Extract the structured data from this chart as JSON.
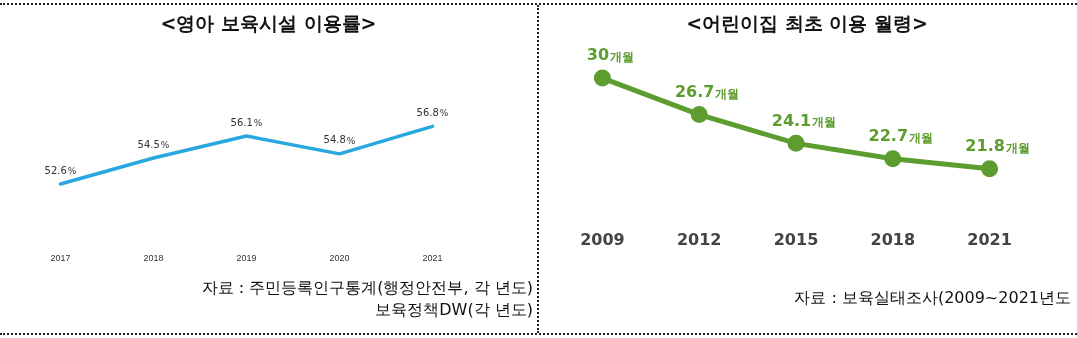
{
  "chart_data": [
    {
      "type": "line",
      "title": "<영아 보육시설 이용률>",
      "categories": [
        "2017",
        "2018",
        "2019",
        "2020",
        "2021"
      ],
      "series": [
        {
          "color": "#29a8e0",
          "values": [
            52.6,
            54.5,
            56.1,
            54.8,
            56.8
          ]
        }
      ],
      "value_labels": [
        "52.6%",
        "54.5%",
        "56.1%",
        "54.8%",
        "56.8%"
      ],
      "data_labels": true,
      "tick_labels": "x",
      "marker": "none",
      "line_style": "solid",
      "annotations": [
        "자료 : 주민등록인구통계(행정안전부, 각 년도)",
        "보육정책DW(각 년도)"
      ]
    },
    {
      "type": "line",
      "title": "<어린이집 최초 이용 월령>",
      "categories": [
        "2009",
        "2012",
        "2015",
        "2018",
        "2021"
      ],
      "series": [
        {
          "color": "#5d9c2e",
          "values": [
            30,
            26.7,
            24.1,
            22.7,
            21.8
          ]
        }
      ],
      "value_labels": [
        "30개월",
        "26.7개월",
        "24.1개월",
        "22.7개월",
        "21.8개월"
      ],
      "data_labels": true,
      "tick_labels": "x",
      "marker": "circle",
      "line_style": "solid",
      "annotations": [
        "자료 : 보육실태조사(2009~2021년도"
      ]
    }
  ]
}
